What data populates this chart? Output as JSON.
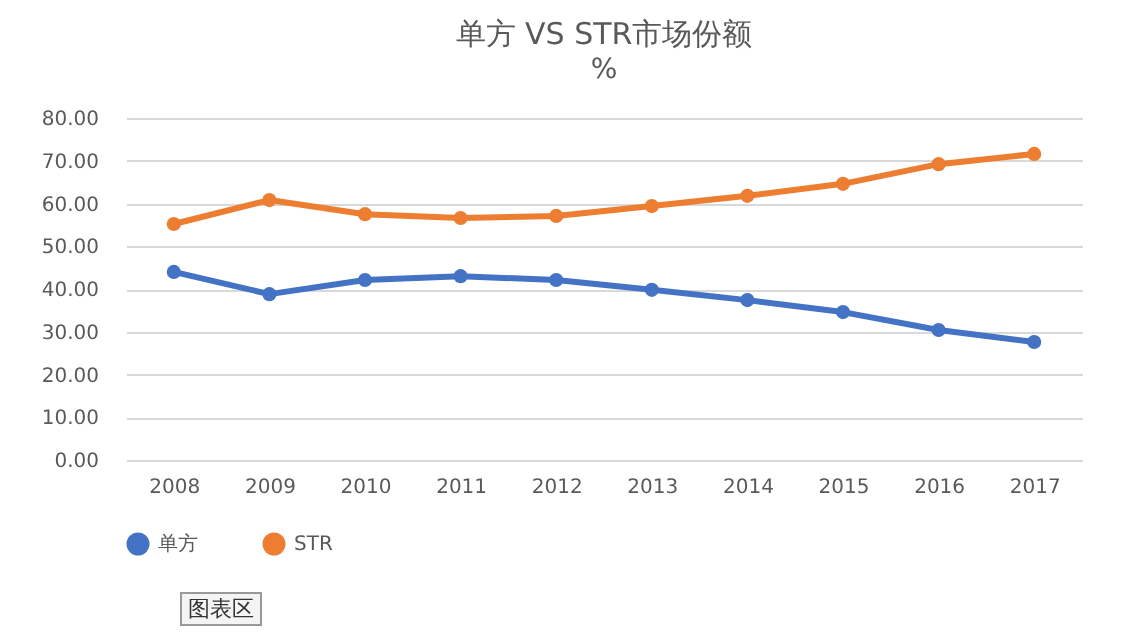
{
  "chart_data": {
    "type": "line",
    "title": "单方 VS STR市场份额",
    "subtitle": "%",
    "categories": [
      "2008",
      "2009",
      "2010",
      "2011",
      "2012",
      "2013",
      "2014",
      "2015",
      "2016",
      "2017"
    ],
    "series": [
      {
        "name": "单方",
        "color": "#4472c4",
        "values": [
          44.0,
          38.8,
          42.1,
          43.0,
          42.1,
          39.8,
          37.4,
          34.6,
          30.4,
          27.6
        ]
      },
      {
        "name": "STR",
        "color": "#ed7d31",
        "values": [
          55.2,
          60.8,
          57.5,
          56.6,
          57.1,
          59.4,
          61.8,
          64.6,
          69.2,
          71.6
        ]
      }
    ],
    "ylim": [
      0,
      80
    ],
    "yticks": [
      {
        "value": 0,
        "label": "0.00"
      },
      {
        "value": 10,
        "label": "10.00"
      },
      {
        "value": 20,
        "label": "20.00"
      },
      {
        "value": 30,
        "label": "30.00"
      },
      {
        "value": 40,
        "label": "40.00"
      },
      {
        "value": 50,
        "label": "50.00"
      },
      {
        "value": 60,
        "label": "60.00"
      },
      {
        "value": 70,
        "label": "70.00"
      },
      {
        "value": 80,
        "label": "80.00"
      }
    ],
    "grid": "y",
    "legend": "bottom",
    "marker": "circle",
    "line_style": "solid",
    "annotations": [
      "图表区"
    ]
  }
}
